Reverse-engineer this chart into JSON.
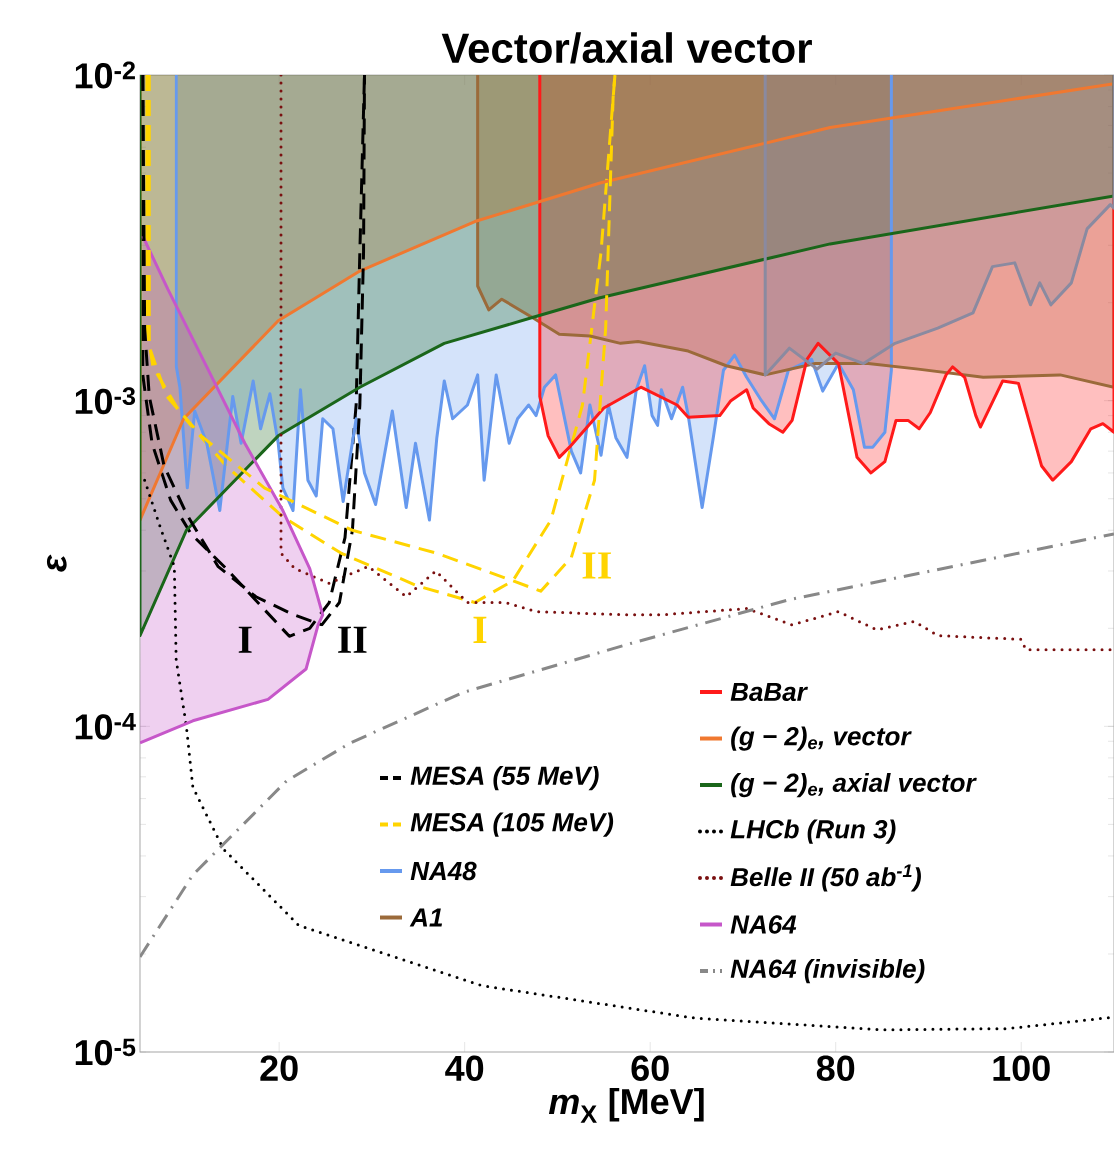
{
  "chart_data": {
    "type": "line",
    "title": "Vector/axial vector",
    "xlabel": "*m*$_{X}$ [MeV]",
    "ylabel": "ε",
    "log": "y",
    "legend": "bottom right",
    "xlim": [
      5,
      110
    ],
    "ylim": [
      1e-05,
      0.01
    ],
    "xticks": [
      20,
      40,
      60,
      80,
      100
    ],
    "yticks": [
      {
        "value": 1e-05,
        "label": "10$^{-5}$"
      },
      {
        "value": 0.0001,
        "label": "10$^{-4}$"
      },
      {
        "value": 0.001,
        "label": "10$^{-3}$"
      },
      {
        "value": 0.01,
        "label": "10$^{-2}$"
      }
    ],
    "annotations": [
      "I",
      "II",
      "I",
      "II"
    ],
    "series": [
      {
        "name": "MESA (55 MeV)",
        "color": "#000000",
        "line_style": "dashed",
        "x": [
          5.3,
          5.3,
          6.3,
          8.3,
          10.5,
          14.3,
          21.1,
          23.3,
          25.4,
          27.1,
          28.3,
          28.7,
          29.2
        ],
        "values": [
          0.01,
          0.0012,
          0.00074,
          0.000495,
          0.00039,
          0.000305,
          0.000189,
          0.0002,
          0.00024,
          0.00038,
          0.00097,
          0.00286,
          0.01
        ]
      },
      {
        "name": "MESA (105 MeV)",
        "color": "#ffd400",
        "line_style": "dashed",
        "x": [
          5.75,
          5.75,
          6.4,
          9.3,
          14.3,
          20.4,
          26.7,
          34.9,
          41.1,
          45.2,
          49.3,
          52.7,
          54.7,
          56.2
        ],
        "values": [
          0.01,
          0.00167,
          0.00127,
          0.00092,
          0.00063,
          0.00044,
          0.00034,
          0.00027,
          0.00024,
          0.00028,
          0.00043,
          0.00097,
          0.00286,
          0.01
        ]
      },
      {
        "name": "NA48",
        "type": "area",
        "color": "#6699ee",
        "line_style": "solid",
        "x": [
          8.9,
          8.9,
          9.3,
          10.1,
          10.9,
          12.2,
          13.6,
          15,
          15.9,
          17.2,
          18,
          19,
          19.9,
          20.4,
          21.5,
          22.3,
          23.1,
          24,
          24.7,
          25.8,
          26.9,
          28.3,
          29.2,
          30.4,
          32.2,
          33.7,
          34.7,
          36.2,
          37,
          37.8,
          38.7,
          40.3,
          41.4,
          42.1,
          43.4,
          44.8,
          45.7,
          46.9,
          47.7,
          48.6,
          49.8,
          51.5,
          52.5,
          53.5,
          54.7,
          55.5,
          56.3,
          57.5,
          58.5,
          59.4,
          60.2,
          60.8,
          61.2,
          62.3,
          63.5,
          64.1,
          65.6,
          66.8,
          67.9,
          69.1,
          70.4,
          72,
          73.4,
          74.9,
          77.4,
          78.6,
          80.3,
          81.9,
          83.1,
          84,
          85.3,
          86,
          86
        ],
        "values": [
          0.01,
          0.00128,
          0.0011,
          0.00054,
          0.00093,
          0.00074,
          0.00046,
          0.00103,
          0.00074,
          0.00115,
          0.00082,
          0.00105,
          0.00074,
          0.00054,
          0.00046,
          0.00108,
          0.00057,
          0.00051,
          0.00088,
          0.00082,
          0.00049,
          0.00088,
          0.0006,
          0.00048,
          0.00093,
          0.00047,
          0.00074,
          0.00043,
          0.00077,
          0.00115,
          0.00088,
          0.00097,
          0.0012,
          0.00057,
          0.0012,
          0.00074,
          0.00088,
          0.00097,
          0.0009,
          0.0011,
          0.0012,
          0.0007,
          0.0006,
          0.00097,
          0.00068,
          0.00097,
          0.00077,
          0.00067,
          0.00108,
          0.00128,
          0.0009,
          0.00084,
          0.00108,
          0.00088,
          0.0011,
          0.0009,
          0.00047,
          0.00077,
          0.00124,
          0.00138,
          0.00118,
          0.001,
          0.00088,
          0.00124,
          0.00134,
          0.00107,
          0.0013,
          0.00108,
          0.00072,
          0.00072,
          0.0008,
          0.00124,
          0.01
        ]
      },
      {
        "name": "A1",
        "type": "area",
        "color": "#9b6a3a",
        "line_style": "solid",
        "x": [
          41.4,
          41.4,
          42.6,
          44,
          47.3,
          50.2,
          53.5,
          56.8,
          58.7,
          64.1,
          68.2,
          72.4,
          77.8,
          83.5,
          88.9,
          95.9,
          104.2,
          110,
          110
        ],
        "values": [
          0.01,
          0.00225,
          0.0019,
          0.00205,
          0.0018,
          0.0016,
          0.00158,
          0.0015,
          0.00152,
          0.00142,
          0.00128,
          0.0012,
          0.0013,
          0.0013,
          0.00125,
          0.00118,
          0.0012,
          0.0011,
          0.01
        ]
      },
      {
        "name": "BaBar",
        "type": "area",
        "color": "#ff1a1a",
        "line_style": "solid",
        "x": [
          48.1,
          48.1,
          49,
          50.2,
          51.3,
          55,
          59,
          62.9,
          64.1,
          67.5,
          68.7,
          70.4,
          71.1,
          72.8,
          74.3,
          75.3,
          76.9,
          78.1,
          80.3,
          82.3,
          83.8,
          85.3,
          86.5,
          87.8,
          89,
          90.2,
          91.9,
          92.6,
          93.9,
          95.1,
          95.6,
          98,
          99.7,
          102.2,
          103.4,
          105.4,
          107.5,
          108.8,
          110,
          110
        ],
        "values": [
          0.01,
          0.00103,
          0.00078,
          0.00067,
          0.00072,
          0.00095,
          0.0011,
          0.00097,
          0.00089,
          0.0009,
          0.001,
          0.00108,
          0.00095,
          0.00085,
          0.0008,
          0.00087,
          0.00134,
          0.0015,
          0.0013,
          0.00067,
          0.0006,
          0.00065,
          0.00087,
          0.00087,
          0.00082,
          0.00092,
          0.0012,
          0.00127,
          0.00118,
          0.0009,
          0.00083,
          0.00115,
          0.00113,
          0.00063,
          0.00057,
          0.00065,
          0.00082,
          0.00085,
          0.0008,
          0.01
        ]
      },
      {
        "name": "(g − 2)$_{e}$, vector",
        "type": "area",
        "color": "#f07830",
        "line_style": "solid",
        "x": [
          5,
          5,
          9.7,
          19.9,
          28.7,
          41.1,
          54.6,
          79.4,
          110,
          110
        ],
        "values": [
          0.01,
          0.00043,
          0.00088,
          0.00176,
          0.0025,
          0.00355,
          0.00466,
          0.0069,
          0.0094,
          0.01
        ]
      },
      {
        "name": "(g − 2)$_{e}$, axial vector",
        "type": "area",
        "color": "#1a661a",
        "line_style": "solid",
        "x": [
          5,
          5,
          10,
          19.9,
          28.7,
          37.8,
          47.3,
          54.6,
          79.4,
          110,
          110
        ],
        "values": [
          0.01,
          0.00019,
          0.0004,
          0.00078,
          0.0011,
          0.0015,
          0.0018,
          0.00207,
          0.00303,
          0.00425,
          0.01
        ]
      },
      {
        "name": "LHCb (Run 3)",
        "color": "#000000",
        "line_style": "dotted",
        "x": [
          5.5,
          7.3,
          8.7,
          8.9,
          10,
          10.7,
          14,
          22.1,
          41.8,
          64.9,
          85.2,
          98.6,
          110
        ],
        "values": [
          0.00057,
          0.0004,
          0.00031,
          0.00016,
          0.0001,
          6.5e-05,
          4.2e-05,
          2.45e-05,
          1.6e-05,
          1.27e-05,
          1.17e-05,
          1.18e-05,
          1.28e-05
        ]
      },
      {
        "name": "Belle II (50 ab$^{-1}$)",
        "color": "#7a1010",
        "line_style": "dotted",
        "x": [
          20.2,
          20.2,
          21.7,
          25.4,
          29.6,
          33.7,
          36.9,
          40.3,
          44.4,
          47.7,
          57.6,
          61.2,
          70.4,
          75.3,
          80.3,
          84.4,
          88.5,
          91,
          100,
          100.5,
          110
        ],
        "values": [
          0.01,
          0.00034,
          0.000305,
          0.000275,
          0.00031,
          0.00025,
          0.0003,
          0.00024,
          0.00024,
          0.000225,
          0.00022,
          0.00022,
          0.00023,
          0.000205,
          0.000225,
          0.000198,
          0.00021,
          0.00019,
          0.000185,
          0.000172,
          0.000172
        ]
      },
      {
        "name": "NA64",
        "type": "area",
        "color": "#c657c9",
        "line_style": "solid",
        "x": [
          5.3,
          8,
          12.2,
          16.3,
          20.4,
          23.3,
          24.7,
          24.2,
          22.9,
          18.8,
          10.7,
          5
        ],
        "values": [
          0.0032,
          0.0022,
          0.00127,
          0.00074,
          0.00046,
          0.000305,
          0.00022,
          0.000205,
          0.00015,
          0.000121,
          0.000104,
          8.9e-05
        ]
      },
      {
        "name": "NA64 (invisible)",
        "color": "#888888",
        "line_style": "dashdot",
        "x": [
          5,
          10.7,
          20.8,
          27.7,
          39.8,
          58,
          75,
          110
        ],
        "values": [
          1.96e-05,
          3.5e-05,
          6.8e-05,
          8.9e-05,
          0.000127,
          0.00018,
          0.000245,
          0.00039
        ]
      },
      {
        "color": "#000000",
        "line_style": "dashed",
        "x": [
          5.3,
          5.5,
          6,
          7.6,
          10,
          13.4,
          17.5,
          21.6,
          24.6,
          26.5,
          27.9,
          28.7,
          29.1,
          29.2
        ],
        "values": [
          0.01,
          0.00167,
          0.00103,
          0.00063,
          0.00045,
          0.00031,
          0.00025,
          0.00022,
          0.000205,
          0.00024,
          0.0004,
          0.00097,
          0.00286,
          0.01
        ]
      },
      {
        "color": "#ffd400",
        "line_style": "dashed",
        "x": [
          6,
          6,
          7.9,
          11.6,
          18.4,
          27.9,
          37,
          45.2,
          48.2,
          51.5,
          54,
          55.2,
          56,
          56.2
        ],
        "values": [
          0.01,
          0.00146,
          0.00103,
          0.00078,
          0.00054,
          0.0004,
          0.00034,
          0.00028,
          0.00026,
          0.00033,
          0.00057,
          0.00167,
          0.0085,
          0.01
        ]
      },
      {
        "type": "area",
        "color": "#8a8aa0",
        "line_style": "solid",
        "x": [
          72.4,
          72.4,
          75,
          78,
          80,
          83,
          86.4,
          91,
          94.8,
          96.9,
          99.3,
          101,
          102,
          103.2,
          105.4,
          107.1,
          109.6,
          110,
          110
        ],
        "values": [
          0.01,
          0.0012,
          0.00145,
          0.00125,
          0.0014,
          0.0013,
          0.0015,
          0.00167,
          0.00186,
          0.00258,
          0.00265,
          0.00197,
          0.0023,
          0.00197,
          0.0023,
          0.00337,
          0.004,
          0.0039,
          0.01
        ]
      }
    ]
  }
}
